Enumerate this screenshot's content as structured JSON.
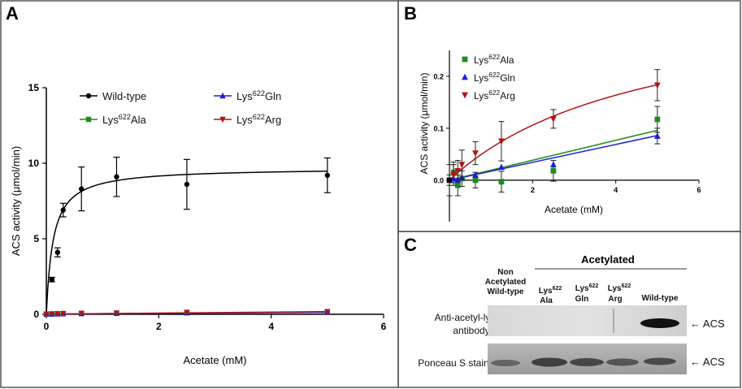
{
  "panels": {
    "A": {
      "label": "A"
    },
    "B": {
      "label": "B"
    },
    "C": {
      "label": "C"
    }
  },
  "chart_data": [
    {
      "panel": "A",
      "type": "scatter",
      "xlabel": "Acetate (mM)",
      "ylabel": "ACS activity (μmol/min)",
      "xlim": [
        0,
        6
      ],
      "ylim": [
        0,
        15
      ],
      "xticks": [
        "0",
        "2",
        "4",
        "6"
      ],
      "yticks": [
        "0",
        "5",
        "10",
        "15"
      ],
      "series": [
        {
          "name": "Wild-type",
          "sup": "",
          "color": "#000000",
          "marker": "circle",
          "x": [
            0.0,
            0.1,
            0.2,
            0.3,
            0.625,
            1.25,
            2.5,
            5.0
          ],
          "y": [
            0.0,
            2.3,
            4.1,
            6.9,
            8.3,
            9.1,
            8.6,
            9.2
          ],
          "err": [
            0,
            0.15,
            0.3,
            0.45,
            1.45,
            1.3,
            1.65,
            1.15
          ],
          "fit": {
            "vmax": 9.7,
            "km": 0.12
          }
        },
        {
          "name": "Lys",
          "sup": "622",
          "suffix": "Ala",
          "color": "#1e8c1e",
          "marker": "square",
          "x": [
            0.0,
            0.1,
            0.2,
            0.3,
            0.625,
            1.25,
            2.5,
            5.0
          ],
          "y": [
            0.02,
            0.02,
            0.03,
            0.04,
            0.05,
            0.06,
            0.1,
            0.15
          ]
        },
        {
          "name": "Lys",
          "sup": "622",
          "suffix": "Gln",
          "color": "#1f1fd6",
          "marker": "triangle-up",
          "x": [
            0.0,
            0.1,
            0.2,
            0.3,
            0.625,
            1.25,
            2.5,
            5.0
          ],
          "y": [
            0.01,
            0.02,
            0.03,
            0.04,
            0.05,
            0.07,
            0.1,
            0.13
          ]
        },
        {
          "name": "Lys",
          "sup": "622",
          "suffix": "Arg",
          "color": "#b01515",
          "marker": "triangle-down",
          "x": [
            0.0,
            0.1,
            0.2,
            0.3,
            0.625,
            1.25,
            2.5,
            5.0
          ],
          "y": [
            0.01,
            0.02,
            0.03,
            0.05,
            0.06,
            0.08,
            0.13,
            0.18
          ]
        }
      ]
    },
    {
      "panel": "B",
      "type": "scatter",
      "xlabel": "Acetate (mM)",
      "ylabel": "ACS activity (μmol/min)",
      "xlim": [
        0,
        6
      ],
      "ylim": [
        -0.08,
        0.25
      ],
      "xticks": [
        "2",
        "4",
        "6"
      ],
      "yticks": [
        "0.0",
        "0.1",
        "0.2"
      ],
      "series": [
        {
          "name": "Lys",
          "sup": "622",
          "suffix": "Ala",
          "color": "#1e8c1e",
          "marker": "square",
          "x": [
            0.0,
            0.1,
            0.2,
            0.3,
            0.625,
            1.25,
            2.5,
            5.0
          ],
          "y": [
            0.0,
            0.015,
            -0.01,
            0.003,
            0.0,
            -0.003,
            0.018,
            0.117
          ],
          "err": [
            0.01,
            0.02,
            0.02,
            0.015,
            0.015,
            0.02,
            0.02,
            0.025
          ],
          "fit_line": [
            0.0,
            0.096
          ]
        },
        {
          "name": "Lys",
          "sup": "622",
          "suffix": "Gln",
          "color": "#1f1fd6",
          "marker": "triangle-up",
          "x": [
            0.0,
            0.1,
            0.2,
            0.3,
            0.625,
            1.25,
            2.5,
            5.0
          ],
          "y": [
            0.0,
            0.003,
            0.0,
            0.005,
            0.01,
            0.025,
            0.03,
            0.085
          ],
          "err": [
            0,
            0,
            0,
            0,
            0,
            0,
            0,
            0.015
          ],
          "fit_line": [
            0.0,
            0.086
          ]
        },
        {
          "name": "Lys",
          "sup": "622",
          "suffix": "Arg",
          "color": "#b01515",
          "marker": "triangle-down",
          "x": [
            0.0,
            0.1,
            0.2,
            0.3,
            0.625,
            1.25,
            2.5,
            5.0
          ],
          "y": [
            0.0,
            0.01,
            0.018,
            0.03,
            0.052,
            0.075,
            0.118,
            0.183
          ],
          "err": [
            0.03,
            0.02,
            0.02,
            0.028,
            0.022,
            0.038,
            0.018,
            0.03
          ],
          "fit": {
            "vmax": 0.36,
            "km": 4.8
          }
        }
      ]
    }
  ],
  "blot": {
    "acetylated_label": "Acetylated",
    "lanes": [
      {
        "lines": [
          "Non",
          "Acetylated",
          "Wild-type"
        ]
      },
      {
        "lines": [
          "Lys622",
          "Ala"
        ]
      },
      {
        "lines": [
          "Lys622",
          "Gln"
        ]
      },
      {
        "lines": [
          "Lys622",
          "Arg"
        ]
      },
      {
        "lines": [
          "Wild-type"
        ]
      }
    ],
    "row1_label_lines": [
      "Anti-acetyl-lysine",
      "antibody"
    ],
    "row2_label": "Ponceau S stain",
    "arrow_label_1": "← ACS",
    "arrow_label_2": "← ACS"
  }
}
